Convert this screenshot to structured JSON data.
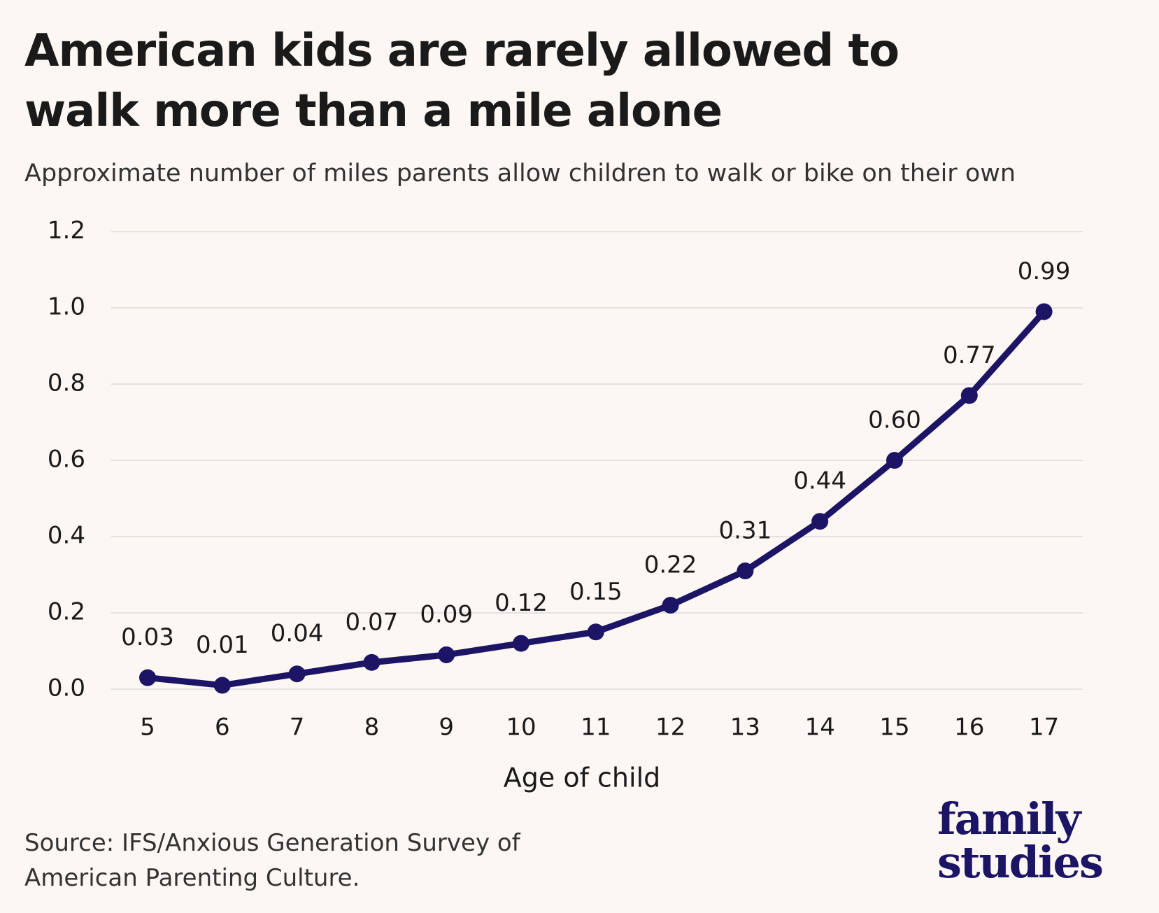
{
  "chart_data": {
    "type": "line",
    "title": "American kids are rarely allowed to walk more than a mile alone",
    "subtitle": "Approximate number of miles parents allow children to walk or bike on their own",
    "x_label": "Age of child",
    "source": "Source: IFS/Anxious Generation Survey of American Parenting Culture.",
    "logo": "family studies",
    "categories": [
      "5",
      "6",
      "7",
      "8",
      "9",
      "10",
      "11",
      "12",
      "13",
      "14",
      "15",
      "16",
      "17"
    ],
    "values": [
      0.03,
      0.01,
      0.04,
      0.07,
      0.09,
      0.12,
      0.15,
      0.22,
      0.31,
      0.44,
      0.6,
      0.77,
      0.99
    ],
    "value_labels": [
      "0.03",
      "0.01",
      "0.04",
      "0.07",
      "0.09",
      "0.12",
      "0.15",
      "0.22",
      "0.31",
      "0.44",
      "0.60",
      "0.77",
      "0.99"
    ],
    "color": "#1c1464",
    "ylim": [
      0,
      1.2
    ],
    "yticks": [
      {
        "value": 0,
        "label": "0.0"
      },
      0.2,
      0.4,
      0.6,
      0.8,
      {
        "value": 1,
        "label": "1.0"
      },
      1.2
    ],
    "grid": true
  }
}
